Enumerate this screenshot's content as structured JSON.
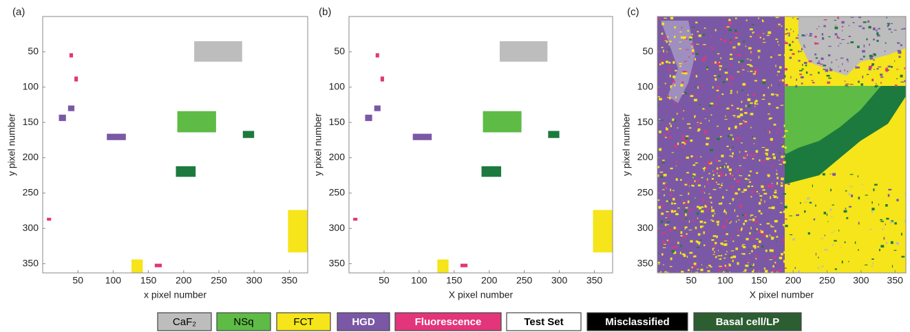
{
  "chart_data": [
    {
      "type": "region_map",
      "panel_label": "(a)",
      "xlabel": "x pixel number",
      "ylabel": "y pixel number",
      "xlim": [
        0,
        376
      ],
      "ylim": [
        363,
        0
      ],
      "xticks": [
        50,
        100,
        150,
        200,
        250,
        300,
        350
      ],
      "yticks": [
        50,
        100,
        150,
        200,
        250,
        300,
        350
      ],
      "regions": [
        {
          "x": [
            215,
            283
          ],
          "y": [
            35,
            64
          ],
          "color": "#bdbdbd"
        },
        {
          "x": [
            38,
            43
          ],
          "y": [
            52,
            58
          ],
          "color": "#e3357a"
        },
        {
          "x": [
            45,
            50
          ],
          "y": [
            85,
            92
          ],
          "color": "#e3357a"
        },
        {
          "x": [
            36,
            45
          ],
          "y": [
            126,
            134
          ],
          "color": "#7b58a6"
        },
        {
          "x": [
            23,
            33
          ],
          "y": [
            139,
            148
          ],
          "color": "#7b58a6"
        },
        {
          "x": [
            91,
            118
          ],
          "y": [
            166,
            175
          ],
          "color": "#7b58a6"
        },
        {
          "x": [
            191,
            246
          ],
          "y": [
            134,
            164
          ],
          "color": "#5ebb46"
        },
        {
          "x": [
            284,
            300
          ],
          "y": [
            162,
            172
          ],
          "color": "#1d7a3e"
        },
        {
          "x": [
            189,
            217
          ],
          "y": [
            212,
            227
          ],
          "color": "#1d7a3e"
        },
        {
          "x": [
            6,
            12
          ],
          "y": [
            285,
            289
          ],
          "color": "#e3357a"
        },
        {
          "x": [
            348,
            376
          ],
          "y": [
            274,
            334
          ],
          "color": "#f5e51a"
        },
        {
          "x": [
            126,
            142
          ],
          "y": [
            344,
            363
          ],
          "color": "#f5e51a"
        },
        {
          "x": [
            159,
            169
          ],
          "y": [
            350,
            355
          ],
          "color": "#e3357a"
        }
      ]
    },
    {
      "type": "region_map",
      "panel_label": "(b)",
      "xlabel": "X pixel number",
      "ylabel": "y pixel number",
      "xlim": [
        0,
        376
      ],
      "ylim": [
        363,
        0
      ],
      "xticks": [
        50,
        100,
        150,
        200,
        250,
        300,
        350
      ],
      "yticks": [
        50,
        100,
        150,
        200,
        250,
        300,
        350
      ],
      "regions": [
        {
          "x": [
            215,
            283
          ],
          "y": [
            35,
            64
          ],
          "color": "#bdbdbd"
        },
        {
          "x": [
            38,
            43
          ],
          "y": [
            52,
            58
          ],
          "color": "#e3357a"
        },
        {
          "x": [
            45,
            50
          ],
          "y": [
            85,
            92
          ],
          "color": "#e3357a"
        },
        {
          "x": [
            36,
            45
          ],
          "y": [
            126,
            134
          ],
          "color": "#7b58a6"
        },
        {
          "x": [
            23,
            33
          ],
          "y": [
            139,
            148
          ],
          "color": "#7b58a6"
        },
        {
          "x": [
            91,
            118
          ],
          "y": [
            166,
            175
          ],
          "color": "#7b58a6"
        },
        {
          "x": [
            191,
            246
          ],
          "y": [
            134,
            164
          ],
          "color": "#5ebb46"
        },
        {
          "x": [
            284,
            300
          ],
          "y": [
            162,
            172
          ],
          "color": "#1d7a3e"
        },
        {
          "x": [
            189,
            217
          ],
          "y": [
            212,
            227
          ],
          "color": "#1d7a3e"
        },
        {
          "x": [
            6,
            12
          ],
          "y": [
            285,
            289
          ],
          "color": "#e3357a"
        },
        {
          "x": [
            348,
            376
          ],
          "y": [
            274,
            334
          ],
          "color": "#f5e51a"
        },
        {
          "x": [
            126,
            142
          ],
          "y": [
            344,
            363
          ],
          "color": "#f5e51a"
        },
        {
          "x": [
            159,
            169
          ],
          "y": [
            350,
            355
          ],
          "color": "#e3357a"
        }
      ]
    },
    {
      "type": "classification_map",
      "panel_label": "(c)",
      "xlabel": "X pixel number",
      "ylabel": "y pixel number",
      "xlim": [
        0,
        366
      ],
      "ylim": [
        363,
        0
      ],
      "xticks": [
        50,
        100,
        150,
        200,
        250,
        300,
        350
      ],
      "yticks": [
        50,
        100,
        150,
        200,
        250,
        300,
        350
      ]
    }
  ],
  "legend": [
    {
      "label": "CaF₂",
      "color": "#bdbdbd",
      "text_color": "#000000",
      "bold": false
    },
    {
      "label": "NSq",
      "color": "#5ebb46",
      "text_color": "#000000",
      "bold": false
    },
    {
      "label": "FCT",
      "color": "#f5e51a",
      "text_color": "#000000",
      "bold": false
    },
    {
      "label": "HGD",
      "color": "#7b58a6",
      "text_color": "#ffffff",
      "bold": true
    },
    {
      "label": "Fluorescence",
      "color": "#e3357a",
      "text_color": "#ffffff",
      "bold": true
    },
    {
      "label": "Test Set",
      "color": "#ffffff",
      "text_color": "#000000",
      "bold": true
    },
    {
      "label": "Misclassified",
      "color": "#000000",
      "text_color": "#ffffff",
      "bold": true
    },
    {
      "label": "Basal cell/LP",
      "color": "#2c5e32",
      "text_color": "#ffffff",
      "bold": true
    }
  ]
}
